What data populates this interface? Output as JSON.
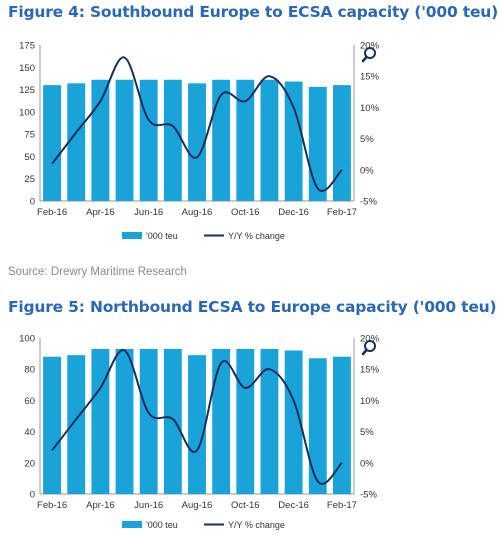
{
  "figures": [
    {
      "title": "Figure 4: Southbound Europe to ECSA capacity ('000 teu)",
      "source": "Source: Drewry Maritime Research"
    },
    {
      "title": "Figure 5: Northbound ECSA to Europe capacity ('000 teu)"
    }
  ],
  "colors": {
    "bar": "#1aa3d9",
    "line": "#1b2f5a",
    "title": "#2b68b3",
    "source": "#8a8a8a"
  },
  "zoom_icon": "magnifier-icon",
  "chart_data": [
    {
      "type": "bar",
      "title": "",
      "categories": [
        "Feb-16",
        "Mar-16",
        "Apr-16",
        "May-16",
        "Jun-16",
        "Jul-16",
        "Aug-16",
        "Sep-16",
        "Oct-16",
        "Nov-16",
        "Dec-16",
        "Jan-17",
        "Feb-17"
      ],
      "x_tick_labels": [
        "Feb-16",
        "Apr-16",
        "Jun-16",
        "Aug-16",
        "Oct-16",
        "Dec-16",
        "Feb-17"
      ],
      "series": [
        {
          "name": "'000 teu",
          "type": "bar",
          "axis": "left",
          "values": [
            130,
            132,
            136,
            136,
            136,
            136,
            132,
            136,
            136,
            136,
            134,
            128,
            130
          ]
        },
        {
          "name": "Y/Y % change",
          "type": "line",
          "axis": "right",
          "values": [
            1,
            6,
            11,
            18,
            8,
            7,
            2,
            12,
            11,
            15,
            10,
            -3,
            0
          ]
        }
      ],
      "ylim": [
        0,
        175
      ],
      "y_ticks": [
        0,
        25,
        50,
        75,
        100,
        125,
        150,
        175
      ],
      "y2lim": [
        -5,
        20
      ],
      "y2_tick_labels": [
        "-5%",
        "0%",
        "5%",
        "10%",
        "15%",
        "20%"
      ],
      "y2_ticks": [
        -5,
        0,
        5,
        10,
        15,
        20
      ],
      "legend": {
        "position": "bottom",
        "entries": [
          "'000 teu",
          "Y/Y % change"
        ]
      },
      "grid": false
    },
    {
      "type": "bar",
      "title": "",
      "categories": [
        "Feb-16",
        "Mar-16",
        "Apr-16",
        "May-16",
        "Jun-16",
        "Jul-16",
        "Aug-16",
        "Sep-16",
        "Oct-16",
        "Nov-16",
        "Dec-16",
        "Jan-17",
        "Feb-17"
      ],
      "x_tick_labels": [
        "Feb-16",
        "Apr-16",
        "Jun-16",
        "Aug-16",
        "Oct-16",
        "Dec-16",
        "Feb-17"
      ],
      "series": [
        {
          "name": "'000 teu",
          "type": "bar",
          "axis": "left",
          "values": [
            88,
            89,
            93,
            93,
            93,
            93,
            89,
            93,
            93,
            93,
            92,
            87,
            88
          ]
        },
        {
          "name": "Y/Y % change",
          "type": "line",
          "axis": "right",
          "values": [
            2,
            7,
            12,
            18,
            8,
            7,
            2,
            16,
            12,
            15,
            10,
            -3,
            0
          ]
        }
      ],
      "ylim": [
        0,
        100
      ],
      "y_ticks": [
        0,
        20,
        40,
        60,
        80,
        100
      ],
      "y2lim": [
        -5,
        20
      ],
      "y2_tick_labels": [
        "-5%",
        "0%",
        "5%",
        "10%",
        "15%",
        "20%"
      ],
      "y2_ticks": [
        -5,
        0,
        5,
        10,
        15,
        20
      ],
      "legend": {
        "position": "bottom",
        "entries": [
          "'000 teu",
          "Y/Y % change"
        ]
      },
      "grid": false
    }
  ]
}
